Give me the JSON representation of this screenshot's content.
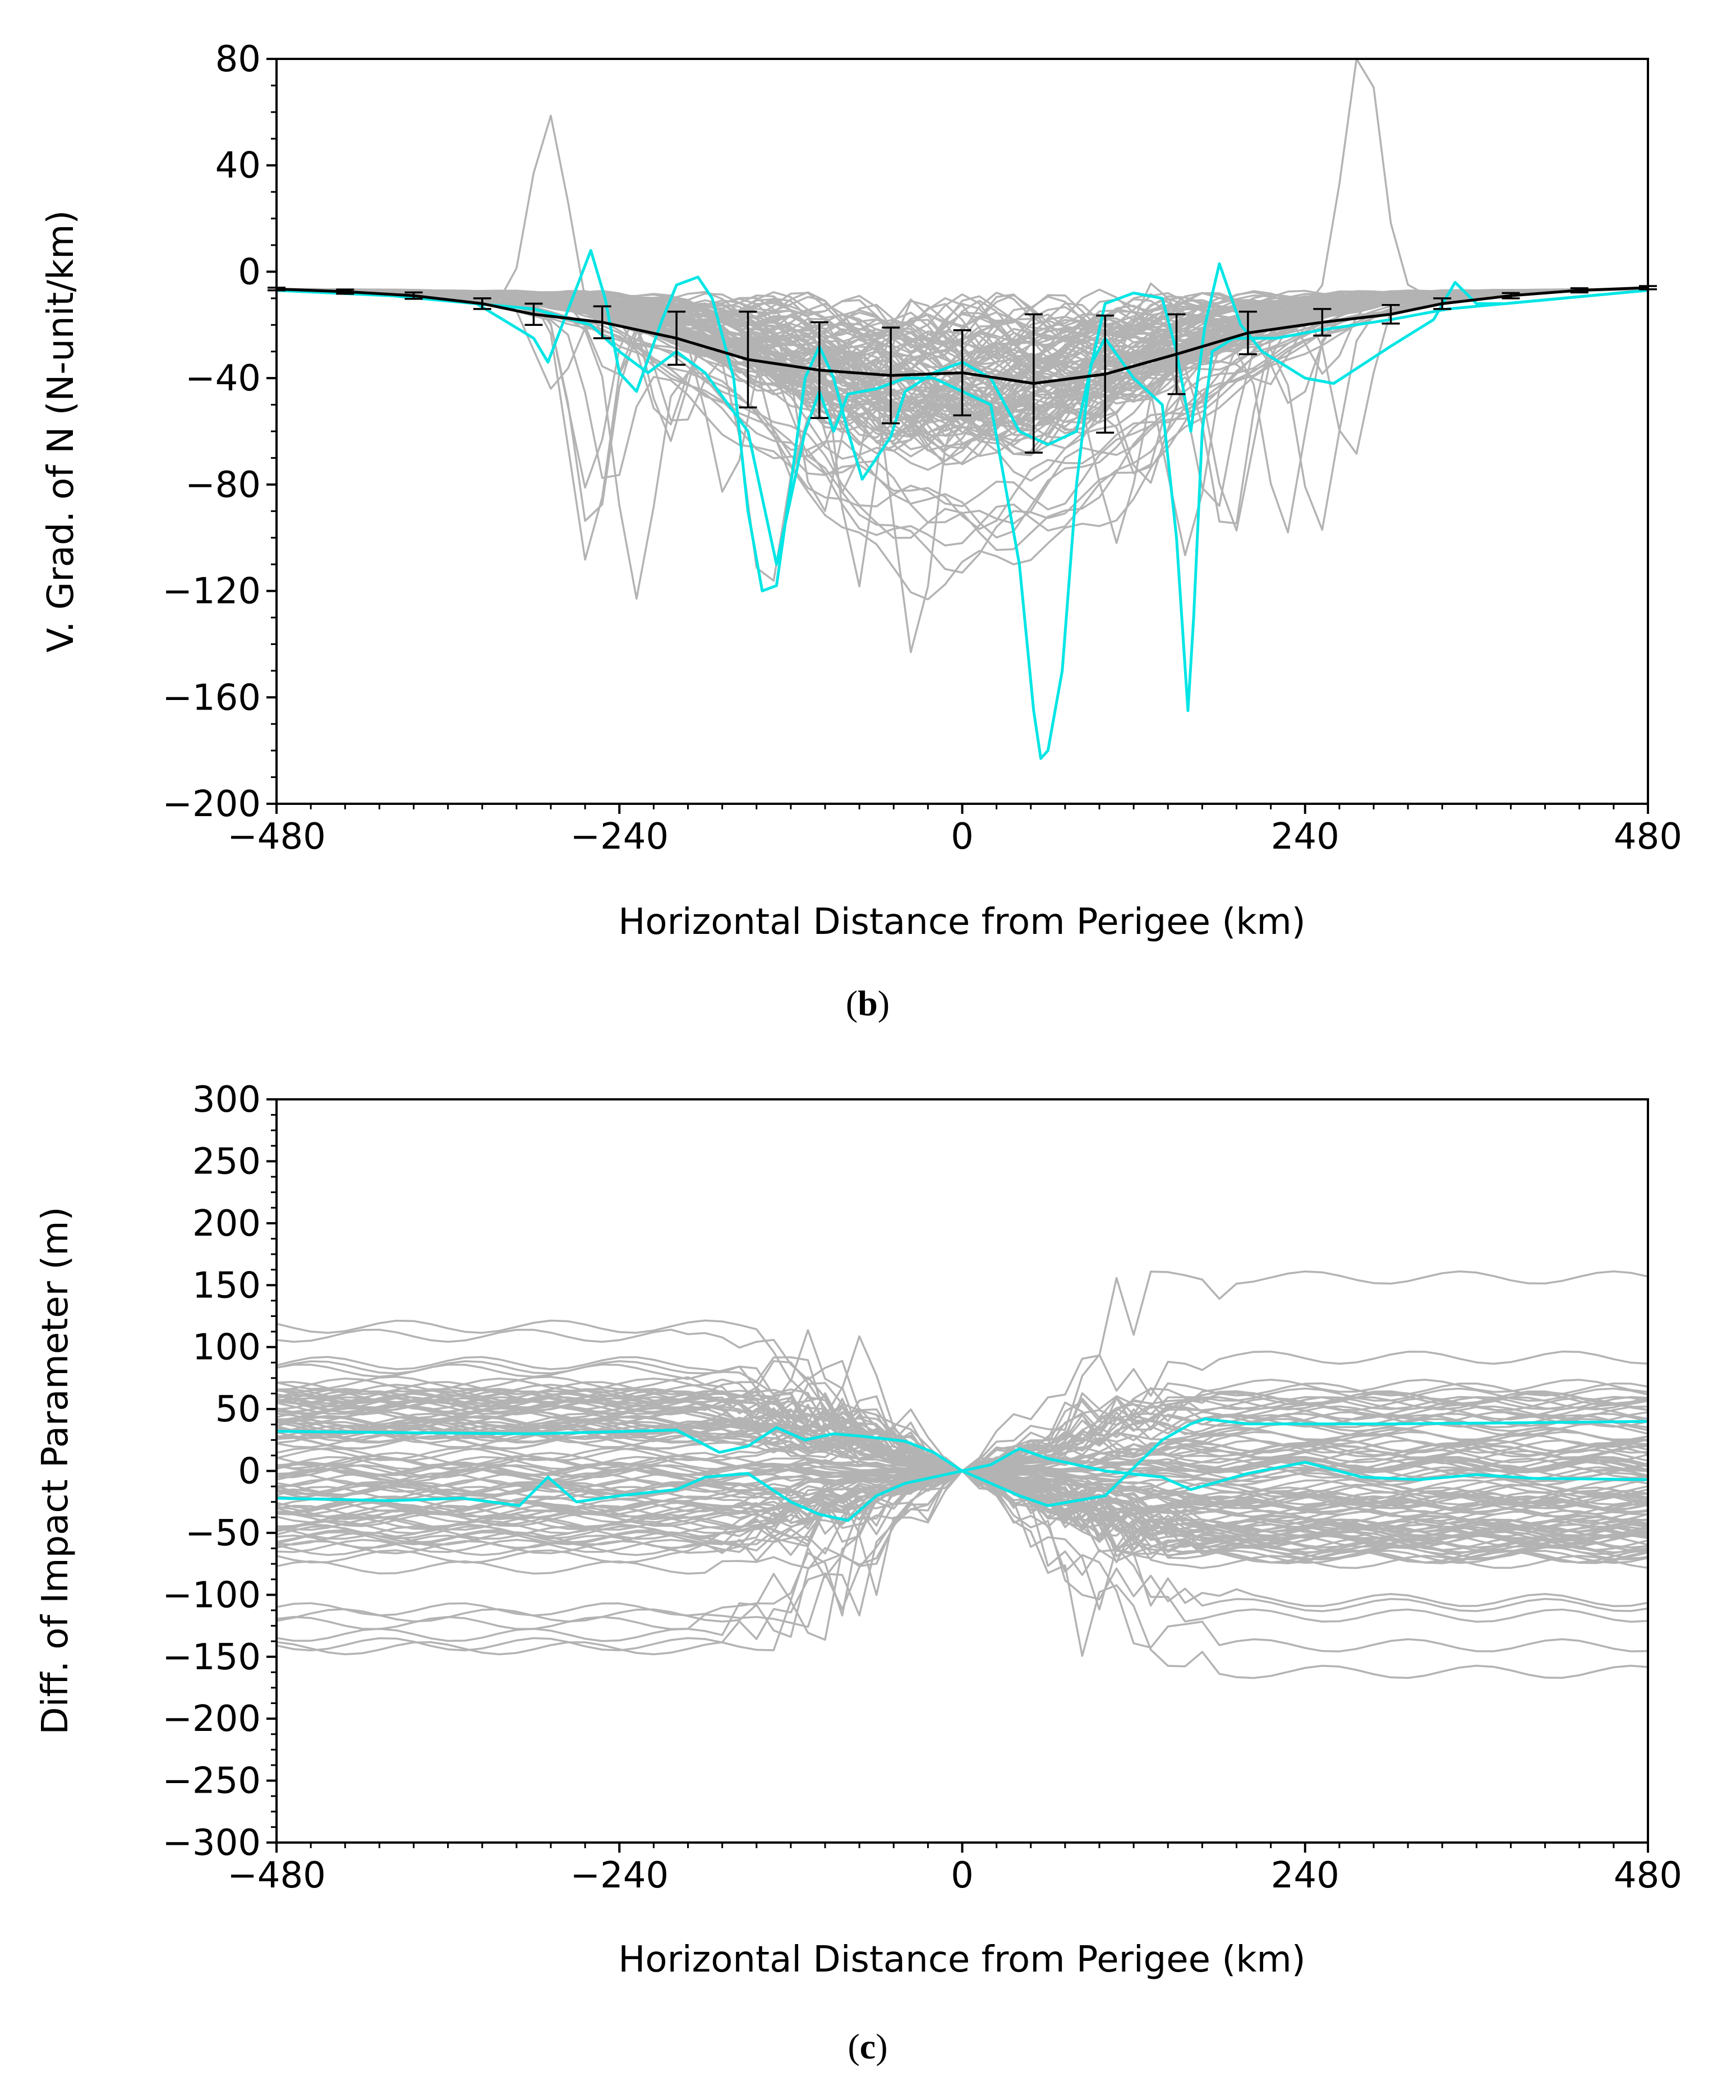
{
  "colors": {
    "ensemble": "#b3b3b3",
    "highlight": "#00e5e5",
    "mean": "#000000"
  },
  "chart_data": [
    {
      "type": "line",
      "panel_label": "b",
      "xlabel": "Horizontal Distance from Perigee (km)",
      "ylabel": "V. Grad. of N (N-unit/km)",
      "xlim": [
        -480,
        480
      ],
      "ylim": [
        -200,
        80
      ],
      "xticks": [
        -480,
        -240,
        0,
        240,
        480
      ],
      "xtick_labels": [
        "−480",
        "−240",
        "0",
        "240",
        "480"
      ],
      "yticks": [
        80,
        40,
        0,
        -40,
        -80,
        -120,
        -160,
        -200
      ],
      "ytick_labels": [
        "80",
        "40",
        "0",
        "−40",
        "−80",
        "−120",
        "−160",
        "−200"
      ],
      "mean": {
        "x": [
          -480,
          -432,
          -384,
          -336,
          -300,
          -252,
          -200,
          -150,
          -100,
          -50,
          0,
          50,
          100,
          150,
          200,
          252,
          300,
          336,
          384,
          432,
          480
        ],
        "y": [
          -6.5,
          -7.5,
          -9,
          -12,
          -16,
          -19,
          -25,
          -33,
          -37,
          -39,
          -38,
          -42,
          -38.5,
          -31,
          -23,
          -19,
          -16,
          -12,
          -9,
          -7,
          -6
        ],
        "err": [
          0.5,
          0.8,
          1.2,
          2,
          4,
          6,
          10,
          18,
          18,
          18,
          16,
          26,
          22,
          15,
          8,
          5,
          3.5,
          2,
          1,
          0.8,
          0.6
        ]
      },
      "highlight_series": [
        {
          "name": "highlight-1",
          "x": [
            -480,
            -400,
            -340,
            -300,
            -290,
            -280,
            -260,
            -250,
            -240,
            -228,
            -210,
            -200,
            -185,
            -175,
            -160,
            -150,
            -140,
            -130,
            -120,
            -110,
            -100,
            -90,
            -80,
            -70,
            -50,
            -40,
            -20,
            0,
            20,
            40,
            60,
            80,
            100,
            120,
            140,
            150,
            160,
            170,
            180,
            195,
            210,
            225,
            240,
            260,
            280,
            300,
            330,
            345,
            360,
            380,
            480
          ],
          "y": [
            -7,
            -9,
            -12,
            -25,
            -34,
            -20,
            8,
            -10,
            -38,
            -45,
            -18,
            -5,
            -2,
            -10,
            -40,
            -90,
            -120,
            -118,
            -80,
            -40,
            -28,
            -40,
            -60,
            -78,
            -62,
            -45,
            -38,
            -34,
            -40,
            -60,
            -65,
            -60,
            -12,
            -8,
            -10,
            -30,
            -60,
            -20,
            3,
            -20,
            -30,
            -35,
            -40,
            -42,
            -35,
            -28,
            -18,
            -4,
            -12,
            -12,
            -7
          ]
        },
        {
          "name": "highlight-2",
          "x": [
            -480,
            -400,
            -300,
            -260,
            -240,
            -220,
            -200,
            -180,
            -150,
            -130,
            -110,
            -100,
            -90,
            -80,
            -60,
            -40,
            -20,
            0,
            20,
            40,
            50,
            55,
            60,
            70,
            80,
            90,
            100,
            120,
            140,
            150,
            158,
            162,
            168,
            175,
            190,
            220,
            250,
            300,
            340,
            480
          ],
          "y": [
            -7,
            -9,
            -14,
            -20,
            -30,
            -38,
            -30,
            -38,
            -60,
            -110,
            -60,
            -45,
            -60,
            -46,
            -44,
            -40,
            -40,
            -45,
            -50,
            -110,
            -165,
            -183,
            -180,
            -150,
            -80,
            -35,
            -25,
            -40,
            -50,
            -100,
            -165,
            -130,
            -60,
            -30,
            -25,
            -25,
            -22,
            -18,
            -14,
            -7
          ]
        }
      ]
    },
    {
      "type": "line",
      "panel_label": "c",
      "xlabel": "Horizontal Distance from Perigee (km)",
      "ylabel": "Diff. of Impact Parameter (m)",
      "xlim": [
        -480,
        480
      ],
      "ylim": [
        -300,
        300
      ],
      "xticks": [
        -480,
        -240,
        0,
        240,
        480
      ],
      "xtick_labels": [
        "−480",
        "−240",
        "0",
        "240",
        "480"
      ],
      "yticks": [
        300,
        250,
        200,
        150,
        100,
        50,
        0,
        -50,
        -100,
        -150,
        -200,
        -250,
        -300
      ],
      "ytick_labels": [
        "300",
        "250",
        "200",
        "150",
        "100",
        "50",
        "0",
        "−50",
        "−100",
        "−150",
        "−200",
        "−250",
        "−300"
      ],
      "highlight_series": [
        {
          "name": "highlight-upper",
          "x": [
            -480,
            -400,
            -300,
            -200,
            -170,
            -150,
            -130,
            -110,
            -90,
            -70,
            -40,
            -20,
            0,
            40,
            60,
            100,
            140,
            160,
            170,
            200,
            300,
            400,
            480
          ],
          "y": [
            32,
            31,
            30,
            33,
            15,
            20,
            35,
            25,
            30,
            28,
            24,
            15,
            0,
            -20,
            -28,
            -20,
            25,
            38,
            42,
            38,
            38,
            39,
            40
          ],
          "draw": "right-half-upper"
        },
        {
          "name": "highlight-lower",
          "x": [
            -480,
            -400,
            -350,
            -330,
            -310,
            -290,
            -270,
            -240,
            -200,
            -180,
            -150,
            -120,
            -100,
            -80,
            -60,
            -40,
            -20,
            0,
            20,
            40,
            60,
            100,
            140,
            160,
            200,
            240,
            280,
            320,
            360,
            400,
            480
          ],
          "y": [
            -22,
            -24,
            -22,
            -25,
            -28,
            -5,
            -25,
            -20,
            -15,
            -5,
            -2,
            -25,
            -35,
            -40,
            -20,
            -10,
            -5,
            0,
            5,
            18,
            10,
            0,
            -5,
            -15,
            -2,
            7,
            -5,
            -7,
            -3,
            -6,
            -7
          ]
        }
      ]
    }
  ]
}
